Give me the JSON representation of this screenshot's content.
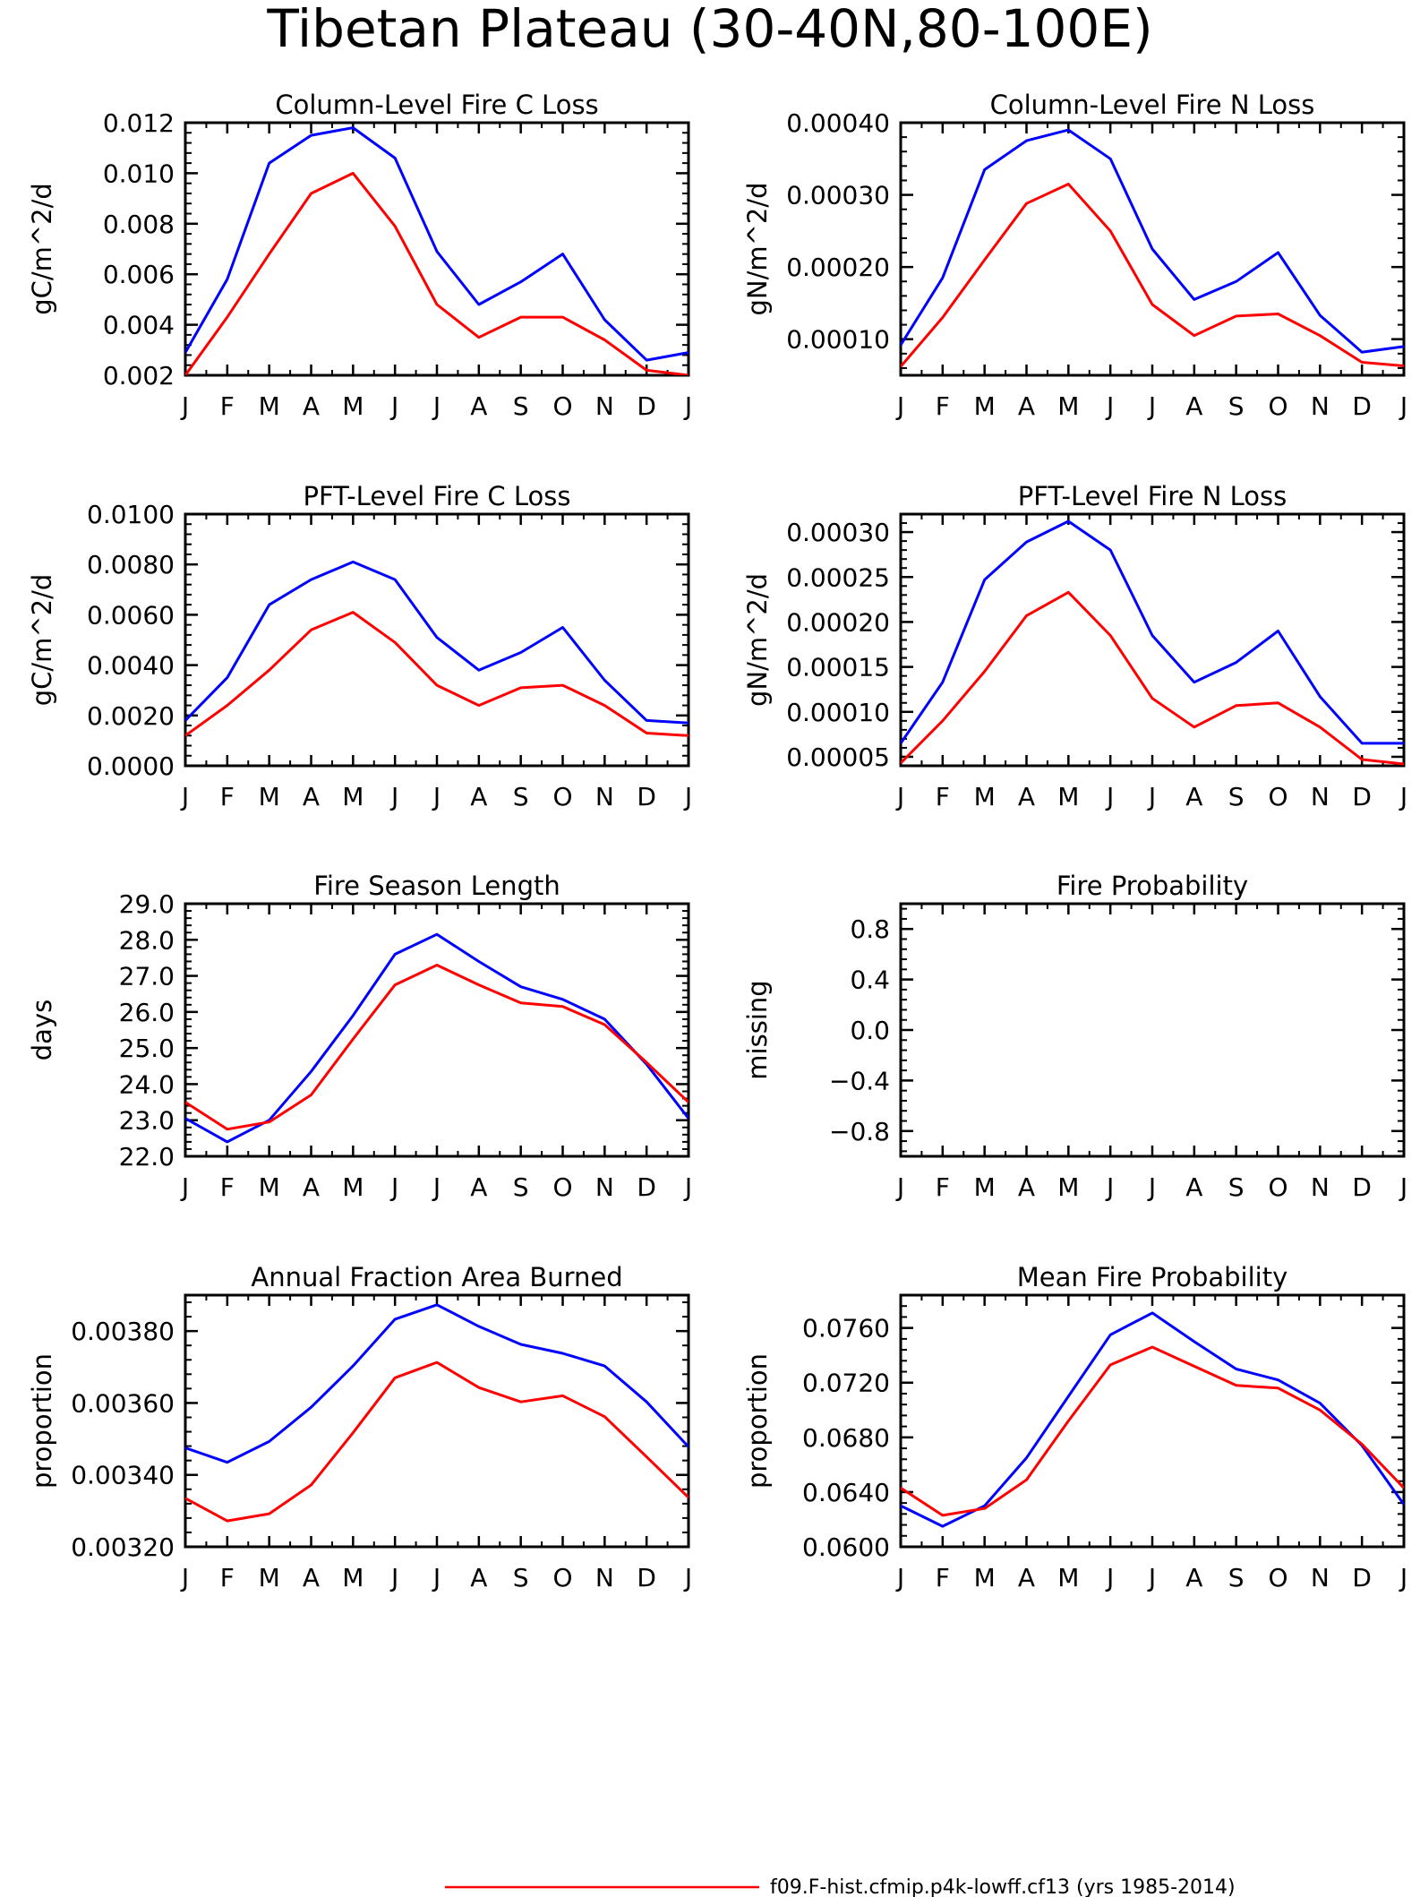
{
  "figure": {
    "title": "Tibetan Plateau (30-40N,80-100E)"
  },
  "legend": {
    "label": "f09.F-hist.cfmip.p4k-lowff.cf13 (yrs 1985-2014)",
    "color": "#ff0000"
  },
  "colors": {
    "red_series": "#ff0000",
    "blue_series": "#0000ff",
    "axes": "#000000"
  },
  "chart_data": [
    {
      "type": "line",
      "title": "Column-Level Fire C Loss",
      "ylabel": "gC/m^2/d",
      "categories": [
        "J",
        "F",
        "M",
        "A",
        "M",
        "J",
        "J",
        "A",
        "S",
        "O",
        "N",
        "D",
        "J"
      ],
      "ylim": [
        0.002,
        0.012
      ],
      "yticks": [
        0.002,
        0.004,
        0.006,
        0.008,
        0.01,
        0.012
      ],
      "ytick_labels": [
        "0.002",
        "0.004",
        "0.006",
        "0.008",
        "0.010",
        "0.012"
      ],
      "series": [
        {
          "color": "#0000ff",
          "values": [
            0.0029,
            0.0058,
            0.0104,
            0.0115,
            0.0118,
            0.0106,
            0.0069,
            0.0048,
            0.0057,
            0.0068,
            0.0042,
            0.0026,
            0.0029
          ]
        },
        {
          "color": "#ff0000",
          "values": [
            0.002,
            0.0043,
            0.0068,
            0.0092,
            0.01,
            0.0079,
            0.0048,
            0.0035,
            0.0043,
            0.0043,
            0.0034,
            0.0022,
            0.002
          ]
        }
      ]
    },
    {
      "type": "line",
      "title": "Column-Level Fire N Loss",
      "ylabel": "gN/m^2/d",
      "categories": [
        "J",
        "F",
        "M",
        "A",
        "M",
        "J",
        "J",
        "A",
        "S",
        "O",
        "N",
        "D",
        "J"
      ],
      "ylim": [
        5e-05,
        0.0004
      ],
      "yticks": [
        0.0001,
        0.0002,
        0.0003,
        0.0004
      ],
      "ytick_labels": [
        "0.00010",
        "0.00020",
        "0.00030",
        "0.00040"
      ],
      "series": [
        {
          "color": "#0000ff",
          "values": [
            9.2e-05,
            0.000185,
            0.000335,
            0.000375,
            0.00039,
            0.00035,
            0.000225,
            0.000155,
            0.00018,
            0.00022,
            0.000133,
            8.2e-05,
            9e-05
          ]
        },
        {
          "color": "#ff0000",
          "values": [
            6.2e-05,
            0.00013,
            0.00021,
            0.000288,
            0.000315,
            0.00025,
            0.000148,
            0.000105,
            0.000132,
            0.000135,
            0.000105,
            6.8e-05,
            6.3e-05
          ]
        }
      ]
    },
    {
      "type": "line",
      "title": "PFT-Level Fire C Loss",
      "ylabel": "gC/m^2/d",
      "categories": [
        "J",
        "F",
        "M",
        "A",
        "M",
        "J",
        "J",
        "A",
        "S",
        "O",
        "N",
        "D",
        "J"
      ],
      "ylim": [
        0.0,
        0.01
      ],
      "yticks": [
        0.0,
        0.002,
        0.004,
        0.006,
        0.008,
        0.01
      ],
      "ytick_labels": [
        "0.0000",
        "0.0020",
        "0.0040",
        "0.0060",
        "0.0080",
        "0.0100"
      ],
      "series": [
        {
          "color": "#0000ff",
          "values": [
            0.0018,
            0.0035,
            0.0064,
            0.0074,
            0.0081,
            0.0074,
            0.0051,
            0.0038,
            0.0045,
            0.0055,
            0.0034,
            0.0018,
            0.0017
          ]
        },
        {
          "color": "#ff0000",
          "values": [
            0.0012,
            0.0024,
            0.0038,
            0.0054,
            0.0061,
            0.0049,
            0.0032,
            0.0024,
            0.0031,
            0.0032,
            0.0024,
            0.0013,
            0.0012
          ]
        }
      ]
    },
    {
      "type": "line",
      "title": "PFT-Level Fire N Loss",
      "ylabel": "gN/m^2/d",
      "categories": [
        "J",
        "F",
        "M",
        "A",
        "M",
        "J",
        "J",
        "A",
        "S",
        "O",
        "N",
        "D",
        "J"
      ],
      "ylim": [
        4e-05,
        0.00032
      ],
      "yticks": [
        5e-05,
        0.0001,
        0.00015,
        0.0002,
        0.00025,
        0.0003
      ],
      "ytick_labels": [
        "0.00005",
        "0.00010",
        "0.00015",
        "0.00020",
        "0.00025",
        "0.00030"
      ],
      "series": [
        {
          "color": "#0000ff",
          "values": [
            6.5e-05,
            0.000133,
            0.000247,
            0.000289,
            0.000312,
            0.00028,
            0.000185,
            0.000133,
            0.000155,
            0.00019,
            0.000117,
            6.5e-05,
            6.5e-05
          ]
        },
        {
          "color": "#ff0000",
          "values": [
            4.3e-05,
            9e-05,
            0.000145,
            0.000207,
            0.000233,
            0.000185,
            0.000115,
            8.3e-05,
            0.000107,
            0.00011,
            8.3e-05,
            4.7e-05,
            4.2e-05
          ]
        }
      ]
    },
    {
      "type": "line",
      "title": "Fire Season Length",
      "ylabel": "days",
      "categories": [
        "J",
        "F",
        "M",
        "A",
        "M",
        "J",
        "J",
        "A",
        "S",
        "O",
        "N",
        "D",
        "J"
      ],
      "ylim": [
        22.0,
        29.0
      ],
      "yticks": [
        22.0,
        23.0,
        24.0,
        25.0,
        26.0,
        27.0,
        28.0,
        29.0
      ],
      "ytick_labels": [
        "22.0",
        "23.0",
        "24.0",
        "25.0",
        "26.0",
        "27.0",
        "28.0",
        "29.0"
      ],
      "series": [
        {
          "color": "#0000ff",
          "values": [
            23.05,
            22.4,
            23.0,
            24.35,
            25.9,
            27.6,
            28.15,
            27.4,
            26.7,
            26.35,
            25.8,
            24.55,
            23.05
          ]
        },
        {
          "color": "#ff0000",
          "values": [
            23.5,
            22.75,
            22.95,
            23.7,
            25.25,
            26.75,
            27.3,
            26.75,
            26.25,
            26.15,
            25.65,
            24.6,
            23.5
          ]
        }
      ]
    },
    {
      "type": "line",
      "title": "Fire Probability",
      "ylabel": "missing",
      "categories": [
        "J",
        "F",
        "M",
        "A",
        "M",
        "J",
        "J",
        "A",
        "S",
        "O",
        "N",
        "D",
        "J"
      ],
      "ylim": [
        -1.0,
        1.0
      ],
      "yticks": [
        -0.8,
        -0.4,
        0.0,
        0.4,
        0.8
      ],
      "ytick_labels": [
        "−0.8",
        "−0.4",
        "0.0",
        "0.4",
        "0.8"
      ],
      "series": []
    },
    {
      "type": "line",
      "title": "Annual Fraction Area Burned",
      "ylabel": "proportion",
      "categories": [
        "J",
        "F",
        "M",
        "A",
        "M",
        "J",
        "J",
        "A",
        "S",
        "O",
        "N",
        "D",
        "J"
      ],
      "ylim": [
        0.0032,
        0.0039
      ],
      "yticks": [
        0.0032,
        0.0034,
        0.0036,
        0.0038
      ],
      "ytick_labels": [
        "0.00320",
        "0.00340",
        "0.00360",
        "0.00380"
      ],
      "series": [
        {
          "color": "#0000ff",
          "values": [
            0.003475,
            0.003435,
            0.003493,
            0.003588,
            0.003703,
            0.003833,
            0.003873,
            0.003813,
            0.003763,
            0.003738,
            0.003703,
            0.003603,
            0.003478
          ]
        },
        {
          "color": "#ff0000",
          "values": [
            0.003335,
            0.003272,
            0.003292,
            0.003372,
            0.003517,
            0.00367,
            0.003713,
            0.003643,
            0.003603,
            0.00362,
            0.003562,
            0.00345,
            0.003337
          ]
        }
      ]
    },
    {
      "type": "line",
      "title": "Mean Fire Probability",
      "ylabel": "proportion",
      "categories": [
        "J",
        "F",
        "M",
        "A",
        "M",
        "J",
        "J",
        "A",
        "S",
        "O",
        "N",
        "D",
        "J"
      ],
      "ylim": [
        0.06,
        0.0784
      ],
      "yticks": [
        0.06,
        0.064,
        0.068,
        0.072,
        0.076
      ],
      "ytick_labels": [
        "0.0600",
        "0.0640",
        "0.0680",
        "0.0720",
        "0.0760"
      ],
      "series": [
        {
          "color": "#0000ff",
          "values": [
            0.063,
            0.0615,
            0.063,
            0.0665,
            0.071,
            0.0755,
            0.0771,
            0.075,
            0.073,
            0.0722,
            0.0705,
            0.0674,
            0.0631
          ]
        },
        {
          "color": "#ff0000",
          "values": [
            0.0643,
            0.0623,
            0.0628,
            0.0649,
            0.0692,
            0.0733,
            0.0746,
            0.0732,
            0.0718,
            0.0716,
            0.07,
            0.0675,
            0.0643
          ]
        }
      ]
    }
  ]
}
